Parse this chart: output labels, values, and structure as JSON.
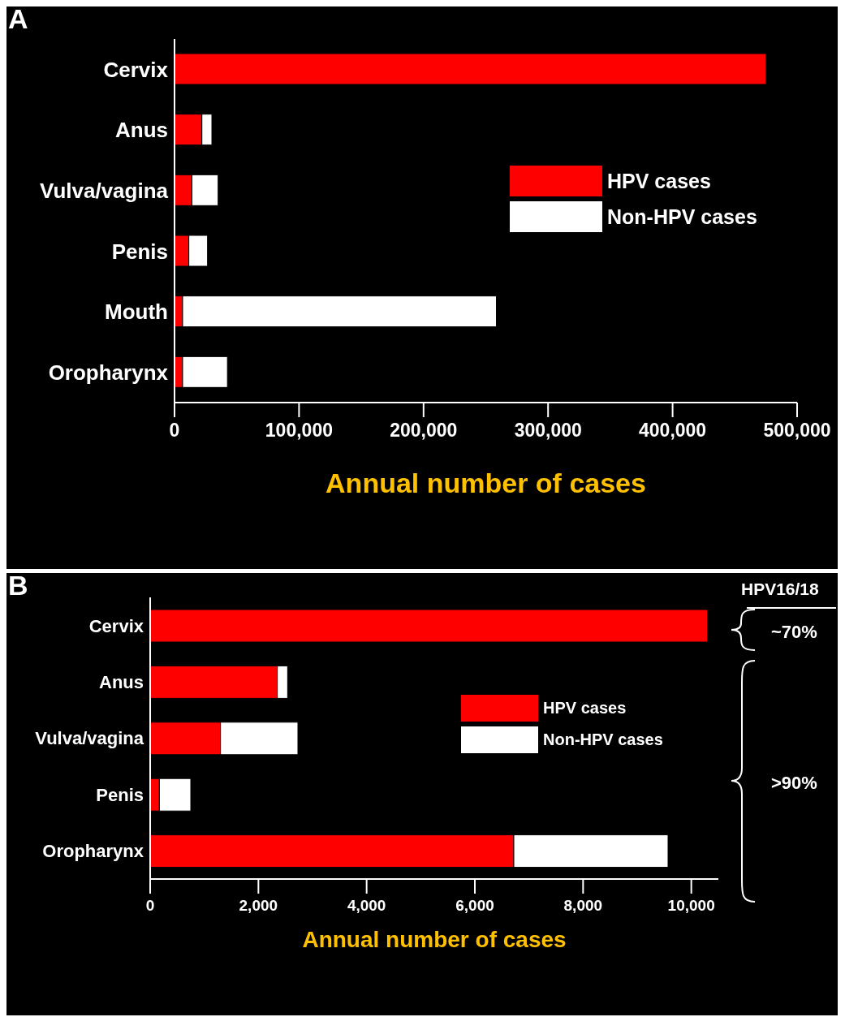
{
  "chart_data": [
    {
      "type": "bar",
      "orientation": "horizontal",
      "stacked": true,
      "title": "A",
      "xlabel": "Annual number of cases",
      "categories": [
        "Cervix",
        "Anus",
        "Vulva/vagina",
        "Penis",
        "Mouth",
        "Oropharynx"
      ],
      "series": [
        {
          "name": "HPV cases",
          "color": "#ff0000",
          "values": [
            475000,
            22000,
            14000,
            11500,
            6500,
            6500
          ]
        },
        {
          "name": "Non-HPV cases",
          "color": "#ffffff",
          "values": [
            0,
            8000,
            21000,
            15000,
            252000,
            36000
          ]
        }
      ],
      "xlim": [
        0,
        500000
      ],
      "xticks": [
        {
          "value": 0,
          "label": "0"
        },
        {
          "value": 100000,
          "label": "100,000"
        },
        {
          "value": 200000,
          "label": "200,000"
        },
        {
          "value": 300000,
          "label": "300,000"
        },
        {
          "value": 400000,
          "label": "400,000"
        },
        {
          "value": 500000,
          "label": "500,000"
        }
      ],
      "legend": "right",
      "grid": false
    },
    {
      "type": "bar",
      "orientation": "horizontal",
      "stacked": true,
      "title": "B",
      "xlabel": "Annual number of cases",
      "categories": [
        "Cervix",
        "Anus",
        "Vulva/vagina",
        "Penis",
        "Oropharynx"
      ],
      "series": [
        {
          "name": "HPV cases",
          "color": "#ff0000",
          "values": [
            10300,
            2350,
            1300,
            170,
            6720
          ]
        },
        {
          "name": "Non-HPV cases",
          "color": "#ffffff",
          "values": [
            0,
            190,
            1430,
            580,
            2850
          ]
        }
      ],
      "xlim": [
        0,
        10500
      ],
      "xticks": [
        {
          "value": 0,
          "label": "0"
        },
        {
          "value": 2000,
          "label": "2,000"
        },
        {
          "value": 4000,
          "label": "4,000"
        },
        {
          "value": 6000,
          "label": "6,000"
        },
        {
          "value": 8000,
          "label": "8,000"
        },
        {
          "value": 10000,
          "label": "10,000"
        }
      ],
      "legend": "right",
      "grid": false,
      "annotations": [
        "HPV16/18",
        "~70%",
        ">90%"
      ]
    }
  ]
}
